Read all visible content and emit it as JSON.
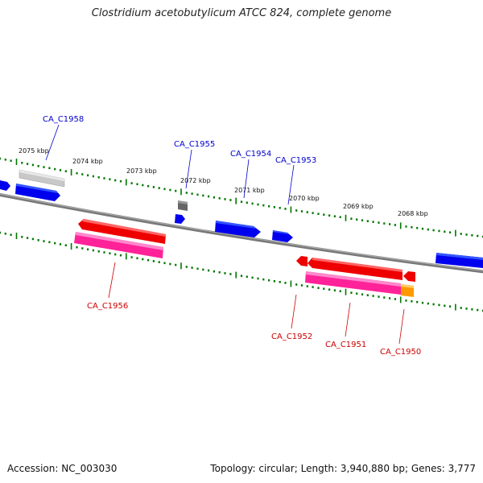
{
  "title": "Clostridium acetobutylicum ATCC 824, complete genome",
  "accession": "Accession: NC_003030",
  "summary": "Topology: circular; Length: 3,940,880 bp; Genes: 3,777",
  "ruler_labels": [
    "2075 kbp",
    "2074 kbp",
    "2073 kbp",
    "2072 kbp",
    "2071 kbp",
    "2070 kbp",
    "2069 kbp",
    "2068 kbp"
  ],
  "gene_labels_forward": [
    "CA_C1958",
    "CA_C1955",
    "CA_C1954",
    "CA_C1953"
  ],
  "gene_labels_reverse": [
    "CA_C1956",
    "CA_C1952",
    "CA_C1951",
    "CA_C1950"
  ],
  "colors": {
    "forward_gene": "#0000ff",
    "reverse_gene": "#ff0000",
    "pink_feature": "#ff33aa",
    "orange_feature": "#ff9900",
    "grey_feature": "#bbbbbb",
    "dark_feature": "#666666",
    "backbone": "#888888",
    "tick": "#007700",
    "forward_label": "#0000cc",
    "reverse_label": "#cc0000"
  }
}
